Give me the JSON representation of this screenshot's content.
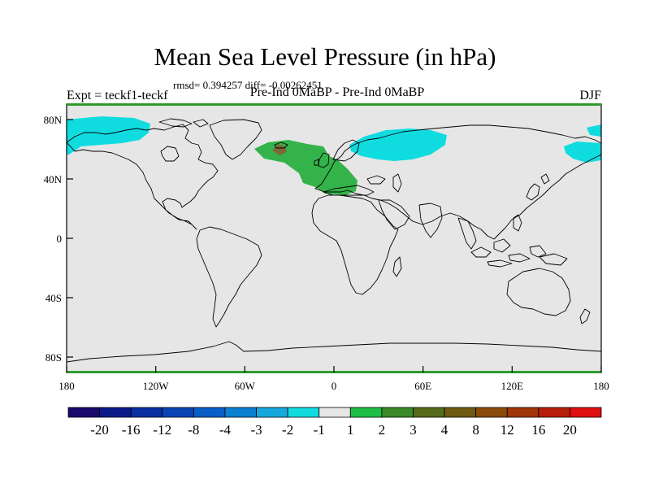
{
  "title": "Mean Sea Level Pressure (in hPa)",
  "stats": "rmsd= 0.394257 diff= -0.00262451",
  "experiment": "Expt = teckf1-teckf",
  "comparison": "Pre-Ind 0MaBP - Pre-Ind 0MaBP",
  "season": "DJF",
  "axes": {
    "lat_labels": [
      "80N",
      "40N",
      "0",
      "40S",
      "80S"
    ],
    "lon_labels": [
      "180",
      "120W",
      "60W",
      "0",
      "60E",
      "120E",
      "180"
    ]
  },
  "colorbar": {
    "colors": [
      "#1a0a6e",
      "#0d1b8a",
      "#0a2fa0",
      "#0a45b5",
      "#0a5ec8",
      "#0a80d0",
      "#14a8dc",
      "#10dce0",
      "#e6e6e6",
      "#1ebe46",
      "#3a8a2a",
      "#556b1a",
      "#6e5a10",
      "#8a4a0a",
      "#a0360a",
      "#b81e0a",
      "#e01010"
    ],
    "labels": [
      "-20",
      "-16",
      "-12",
      "-8",
      "-4",
      "-3",
      "-2",
      "-1",
      "1",
      "2",
      "3",
      "4",
      "8",
      "12",
      "16",
      "20"
    ]
  },
  "colors": {
    "ocean_neutral": "#e6e6e6",
    "neg_small": "#10dce0",
    "pos_small": "#34b34a",
    "pos_medium": "#7a6a3a",
    "frame_top": "#2e9b2e"
  }
}
